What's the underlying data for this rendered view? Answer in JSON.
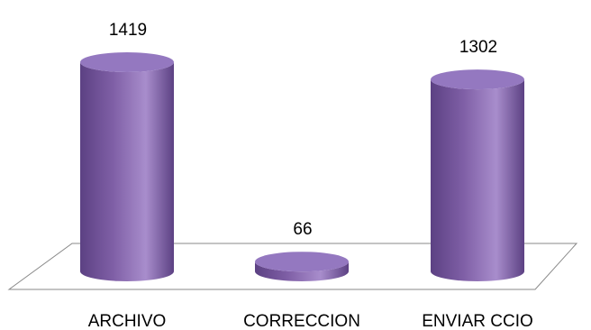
{
  "chart_data": {
    "type": "bar",
    "style": "3d-cylinder",
    "categories": [
      "ARCHIVO",
      "CORRECCION",
      "ENVIAR CCIO"
    ],
    "values": [
      1419,
      66,
      1302
    ],
    "data_labels": [
      "1419",
      "66",
      "1302"
    ],
    "ylim": [
      0,
      1419
    ],
    "grid": false,
    "legend": "none",
    "colors": {
      "bar_body": "#7f5fa6",
      "bar_light": "#a88dcc",
      "bar_dark": "#5c4183",
      "bar_top": "#9478c0",
      "floor_stroke": "#888888"
    }
  }
}
